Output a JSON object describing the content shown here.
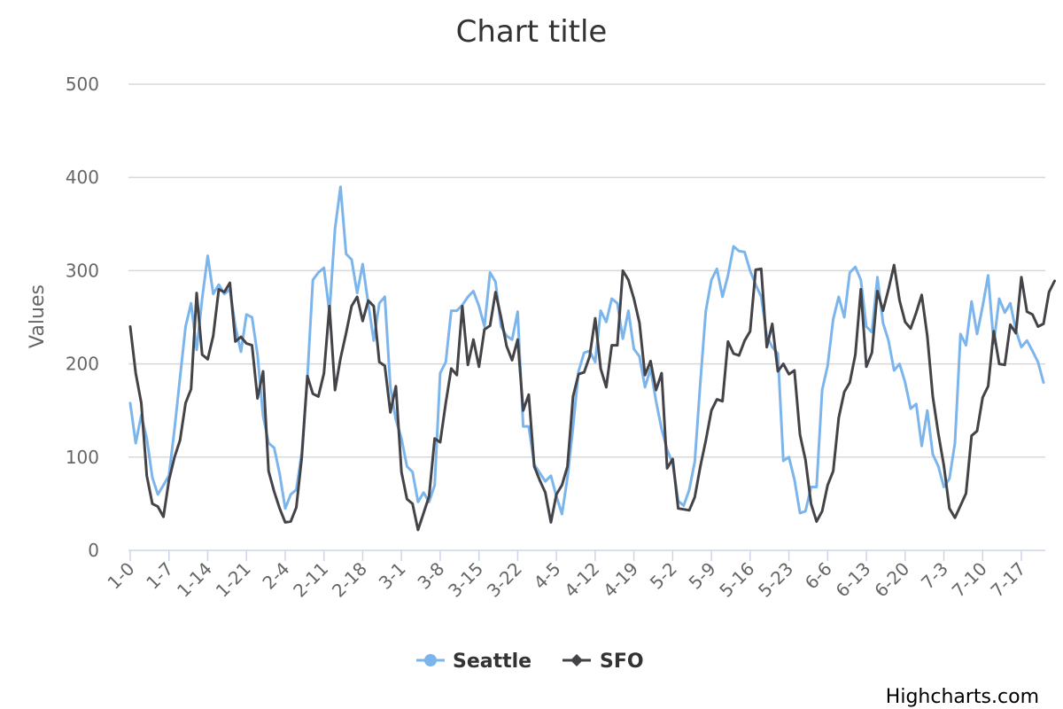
{
  "chart_data": {
    "type": "line",
    "title": "Chart title",
    "ylabel": "Values",
    "xlabel": "",
    "ylim": [
      0,
      500
    ],
    "yticks": [
      0,
      100,
      200,
      300,
      400,
      500
    ],
    "grid": true,
    "legend_position": "bottom-center",
    "x_tick_labels": [
      "1-0",
      "1-7",
      "1-14",
      "1-21",
      "2-4",
      "2-11",
      "2-18",
      "3-1",
      "3-8",
      "3-15",
      "3-22",
      "4-5",
      "4-12",
      "4-19",
      "5-2",
      "5-9",
      "5-16",
      "5-23",
      "6-6",
      "6-13",
      "6-20",
      "7-3",
      "7-10",
      "7-17"
    ],
    "series": [
      {
        "name": "Seattle",
        "color": "#7cb5ec",
        "marker": "circle",
        "values": [
          158,
          115,
          145,
          120,
          78,
          60,
          70,
          80,
          130,
          185,
          240,
          265,
          215,
          270,
          316,
          275,
          285,
          275,
          280,
          240,
          213,
          253,
          250,
          210,
          144,
          115,
          110,
          82,
          45,
          60,
          65,
          105,
          185,
          290,
          298,
          303,
          255,
          345,
          390,
          318,
          312,
          276,
          307,
          265,
          225,
          265,
          272,
          175,
          140,
          120,
          90,
          84,
          52,
          62,
          52,
          70,
          190,
          202,
          257,
          257,
          263,
          272,
          278,
          262,
          240,
          298,
          288,
          240,
          230,
          226,
          256,
          133,
          133,
          92,
          83,
          74,
          80,
          58,
          39,
          78,
          132,
          192,
          212,
          214,
          202,
          257,
          245,
          270,
          265,
          227,
          257,
          216,
          208,
          175,
          195,
          160,
          130,
          108,
          93,
          53,
          48,
          65,
          95,
          180,
          257,
          290,
          302,
          272,
          295,
          326,
          321,
          320,
          300,
          285,
          272,
          230,
          218,
          211,
          96,
          100,
          76,
          40,
          42,
          68,
          68,
          172,
          198,
          248,
          272,
          250,
          298,
          304,
          290,
          240,
          234,
          293,
          244,
          225,
          193,
          200,
          180,
          152,
          157,
          112,
          150,
          103,
          90,
          68,
          77,
          115,
          232,
          220,
          267,
          232,
          262,
          295,
          222,
          270,
          255,
          265,
          236,
          218,
          225,
          214,
          202,
          180
        ],
        "x_ticks_every": 1
      },
      {
        "name": "SFO",
        "color": "#434348",
        "marker": "diamond",
        "values": [
          240,
          190,
          158,
          80,
          50,
          47,
          36,
          75,
          100,
          118,
          158,
          173,
          276,
          210,
          205,
          230,
          280,
          277,
          287,
          224,
          229,
          222,
          220,
          163,
          192,
          85,
          63,
          45,
          30,
          31,
          46,
          100,
          187,
          168,
          165,
          190,
          262,
          172,
          206,
          233,
          262,
          272,
          246,
          268,
          262,
          202,
          198,
          148,
          176,
          84,
          55,
          50,
          22,
          40,
          58,
          120,
          116,
          158,
          195,
          188,
          262,
          199,
          226,
          197,
          237,
          241,
          277,
          250,
          219,
          204,
          226,
          150,
          167,
          90,
          75,
          62,
          30,
          60,
          70,
          90,
          165,
          189,
          191,
          208,
          249,
          195,
          175,
          220,
          220,
          300,
          290,
          270,
          244,
          188,
          203,
          172,
          190,
          88,
          98,
          45,
          44,
          43,
          57,
          90,
          118,
          150,
          162,
          160,
          224,
          211,
          209,
          225,
          235,
          301,
          302,
          218,
          243,
          192,
          200,
          189,
          193,
          124,
          97,
          50,
          31,
          42,
          70,
          85,
          142,
          170,
          180,
          210,
          280,
          197,
          212,
          278,
          257,
          280,
          306,
          268,
          245,
          238,
          255,
          274,
          230,
          165,
          125,
          91,
          45,
          35,
          48,
          61,
          123,
          128,
          164,
          176,
          235,
          200,
          199,
          242,
          233,
          293,
          256,
          253,
          240,
          243,
          277,
          289
        ],
        "x_ticks_every": 1
      }
    ]
  },
  "legend": {
    "items": [
      "Seattle",
      "SFO"
    ]
  },
  "credits": "Highcharts.com"
}
